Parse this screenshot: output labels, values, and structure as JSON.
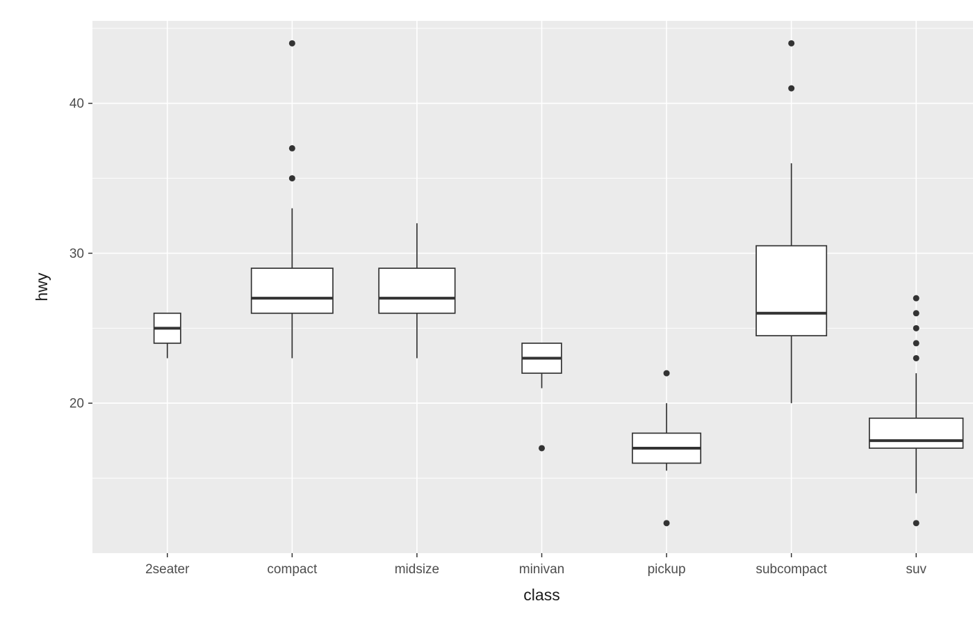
{
  "chart_data": {
    "type": "boxplot",
    "title": "",
    "xlabel": "class",
    "ylabel": "hwy",
    "categories": [
      "2seater",
      "compact",
      "midsize",
      "minivan",
      "pickup",
      "subcompact",
      "suv"
    ],
    "ylim": [
      10.0,
      45.5
    ],
    "y_major_ticks": [
      20,
      30,
      40
    ],
    "y_minor_ticks": [
      15,
      25,
      35,
      45
    ],
    "grid": true,
    "legend": "none",
    "varwidth": true,
    "series": [
      {
        "category": "2seater",
        "n": 5,
        "lower_whisker": 23,
        "q1": 24,
        "median": 25,
        "q3": 26,
        "upper_whisker": 26,
        "outliers": []
      },
      {
        "category": "compact",
        "n": 47,
        "lower_whisker": 23,
        "q1": 26,
        "median": 27,
        "q3": 29,
        "upper_whisker": 33,
        "outliers": [
          35,
          37,
          44
        ]
      },
      {
        "category": "midsize",
        "n": 41,
        "lower_whisker": 23,
        "q1": 26,
        "median": 27,
        "q3": 29,
        "upper_whisker": 32,
        "outliers": []
      },
      {
        "category": "minivan",
        "n": 11,
        "lower_whisker": 21,
        "q1": 22,
        "median": 23,
        "q3": 24,
        "upper_whisker": 24,
        "outliers": [
          17
        ]
      },
      {
        "category": "pickup",
        "n": 33,
        "lower_whisker": 15.5,
        "q1": 16,
        "median": 17,
        "q3": 18,
        "upper_whisker": 20,
        "outliers": [
          12,
          22
        ]
      },
      {
        "category": "subcompact",
        "n": 35,
        "lower_whisker": 20,
        "q1": 24.5,
        "median": 26,
        "q3": 30.5,
        "upper_whisker": 36,
        "outliers": [
          41,
          44
        ]
      },
      {
        "category": "suv",
        "n": 62,
        "lower_whisker": 14,
        "q1": 17,
        "median": 17.5,
        "q3": 19,
        "upper_whisker": 22,
        "outliers": [
          12,
          23,
          24,
          25,
          26,
          27
        ]
      }
    ],
    "colors": {
      "panel_bg": "#EBEBEB",
      "grid": "#FFFFFF",
      "box_stroke": "#333333",
      "box_fill": "#FFFFFF",
      "outlier": "#333333",
      "axis_tick": "#333333",
      "axis_text": "#4D4D4D",
      "axis_title": "#1A1A1A"
    }
  }
}
